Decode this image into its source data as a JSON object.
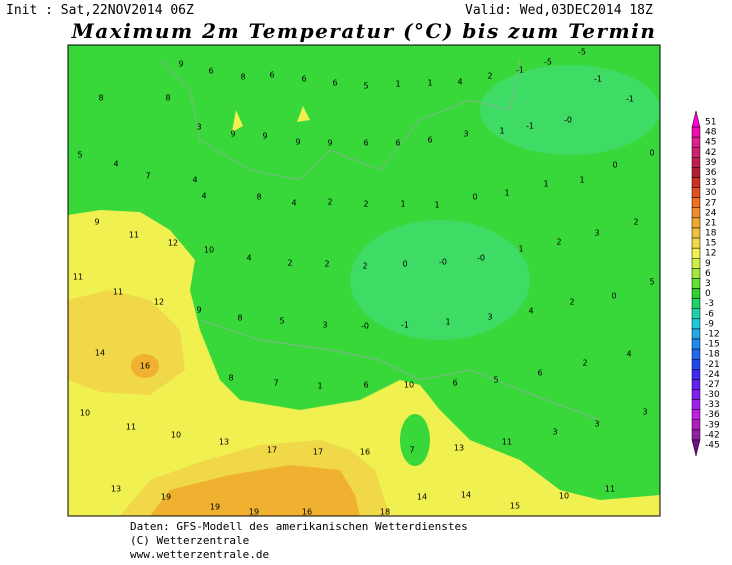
{
  "header": {
    "init": "Init : Sat,22NOV2014 06Z",
    "valid": "Valid: Wed,03DEC2014 18Z",
    "title": "Maximum 2m Temperatur (°C) bis zum Termin"
  },
  "map_labels": [
    "9",
    "6",
    "8",
    "6",
    "6",
    "6",
    "5",
    "1",
    "1",
    "4",
    "2",
    "-1",
    "-5",
    "-5",
    "-1",
    "-1",
    "8",
    "8",
    "3",
    "9",
    "9",
    "9",
    "9",
    "6",
    "6",
    "6",
    "3",
    "1",
    "-1",
    "-0",
    "5",
    "4",
    "7",
    "4",
    "4",
    "8",
    "4",
    "2",
    "2",
    "1",
    "1",
    "0",
    "1",
    "1",
    "1",
    "0",
    "0",
    "9",
    "11",
    "12",
    "10",
    "4",
    "2",
    "2",
    "2",
    "0",
    "-0",
    "-0",
    "1",
    "2",
    "3",
    "2",
    "11",
    "11",
    "12",
    "9",
    "8",
    "5",
    "3",
    "-0",
    "-1",
    "1",
    "3",
    "4",
    "2",
    "0",
    "5",
    "14",
    "16",
    "8",
    "7",
    "1",
    "6",
    "10",
    "6",
    "5",
    "6",
    "2",
    "4",
    "10",
    "11",
    "10",
    "13",
    "17",
    "17",
    "16",
    "7",
    "13",
    "11",
    "3",
    "3",
    "3",
    "13",
    "19",
    "19",
    "19",
    "16",
    "18",
    "14",
    "14",
    "15",
    "10",
    "11"
  ],
  "colorbar": {
    "levels": [
      51,
      48,
      45,
      42,
      39,
      36,
      33,
      30,
      27,
      24,
      21,
      18,
      15,
      12,
      9,
      6,
      3,
      0,
      -3,
      -6,
      -9,
      -12,
      -15,
      -18,
      -21,
      -24,
      -27,
      -30,
      -33,
      -36,
      -39,
      -42,
      -45
    ],
    "colors": [
      "#ff00d0",
      "#f010b0",
      "#e02090",
      "#d02070",
      "#c02050",
      "#b02030",
      "#d03020",
      "#e05020",
      "#f07020",
      "#f09030",
      "#f0a830",
      "#f0c040",
      "#f0d848",
      "#f0f050",
      "#d0f048",
      "#a0e840",
      "#60e030",
      "#30d030",
      "#20d068",
      "#20d0a8",
      "#20c8d8",
      "#20a8e8",
      "#2088f0",
      "#2068f0",
      "#2048f0",
      "#4028f0",
      "#6020f0",
      "#8020f0",
      "#a020f0",
      "#c020e0",
      "#b020c0",
      "#9020a0",
      "#701080"
    ]
  },
  "footer": [
    "Daten: GFS-Modell des amerikanischen Wetterdienstes",
    "(C) Wetterzentrale",
    "www.wetterzentrale.de"
  ]
}
